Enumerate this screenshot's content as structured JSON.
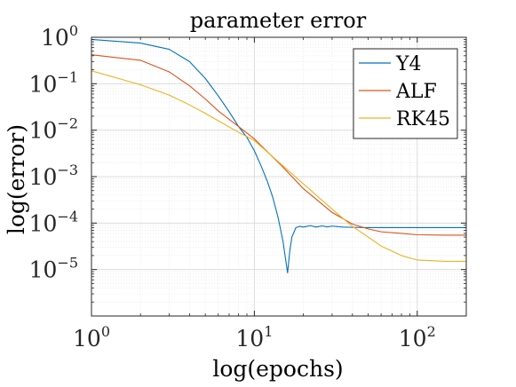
{
  "chart_data": {
    "type": "line",
    "title": "parameter error",
    "xlabel": "log(epochs)",
    "ylabel": "log(error)",
    "x_scale": "log",
    "y_scale": "log",
    "xlim": [
      1,
      200
    ],
    "ylim": [
      1e-06,
      1
    ],
    "grid": true,
    "minor_grid": true,
    "legend_position": "top-right",
    "x_ticks": [
      {
        "value": 1,
        "base": "10",
        "exp": "0"
      },
      {
        "value": 10,
        "base": "10",
        "exp": "1"
      },
      {
        "value": 100,
        "base": "10",
        "exp": "2"
      }
    ],
    "y_ticks": [
      {
        "value": 1,
        "base": "10",
        "exp": "0"
      },
      {
        "value": 0.1,
        "base": "10",
        "exp": "−1"
      },
      {
        "value": 0.01,
        "base": "10",
        "exp": "−2"
      },
      {
        "value": 0.001,
        "base": "10",
        "exp": "−3"
      },
      {
        "value": 0.0001,
        "base": "10",
        "exp": "−4"
      },
      {
        "value": 1e-05,
        "base": "10",
        "exp": "−5"
      }
    ],
    "series": [
      {
        "name": "Y4",
        "color": "#0072BD",
        "x": [
          1,
          2,
          3,
          4,
          5,
          6,
          7,
          8,
          9,
          10,
          11,
          12,
          13,
          14,
          15,
          15.5,
          16,
          16.5,
          17,
          18,
          19,
          20,
          22,
          24,
          26,
          28,
          30,
          35,
          40,
          50,
          60,
          80,
          100,
          150,
          200
        ],
        "y": [
          0.9,
          0.75,
          0.55,
          0.3,
          0.13,
          0.055,
          0.025,
          0.012,
          0.007,
          0.0036,
          0.0017,
          0.0008,
          0.00035,
          0.00013,
          4e-05,
          1.8e-05,
          8.5e-06,
          2.5e-05,
          5e-05,
          8e-05,
          8.5e-05,
          8.2e-05,
          8.8e-05,
          8.2e-05,
          8.7e-05,
          8.3e-05,
          8.6e-05,
          8.2e-05,
          8.1e-05,
          8e-05,
          8e-05,
          8e-05,
          8e-05,
          8e-05,
          8e-05
        ]
      },
      {
        "name": "ALF",
        "color": "#D95319",
        "x": [
          1,
          2,
          3,
          4,
          5,
          6,
          8,
          10,
          15,
          20,
          30,
          40,
          50,
          60,
          80,
          100,
          150,
          200
        ],
        "y": [
          0.42,
          0.32,
          0.18,
          0.09,
          0.047,
          0.026,
          0.012,
          0.0065,
          0.0016,
          0.00055,
          0.00017,
          9.5e-05,
          7.5e-05,
          6.5e-05,
          6e-05,
          5.6e-05,
          5.5e-05,
          5.5e-05
        ]
      },
      {
        "name": "RK45",
        "color": "#EDB120",
        "x": [
          1,
          2,
          3,
          4,
          5,
          6,
          8,
          10,
          15,
          20,
          30,
          40,
          50,
          60,
          80,
          100,
          150,
          200
        ],
        "y": [
          0.19,
          0.095,
          0.057,
          0.035,
          0.023,
          0.016,
          0.009,
          0.006,
          0.0017,
          0.0007,
          0.0002,
          8.5e-05,
          5e-05,
          3.2e-05,
          2e-05,
          1.6e-05,
          1.5e-05,
          1.5e-05
        ]
      }
    ]
  }
}
